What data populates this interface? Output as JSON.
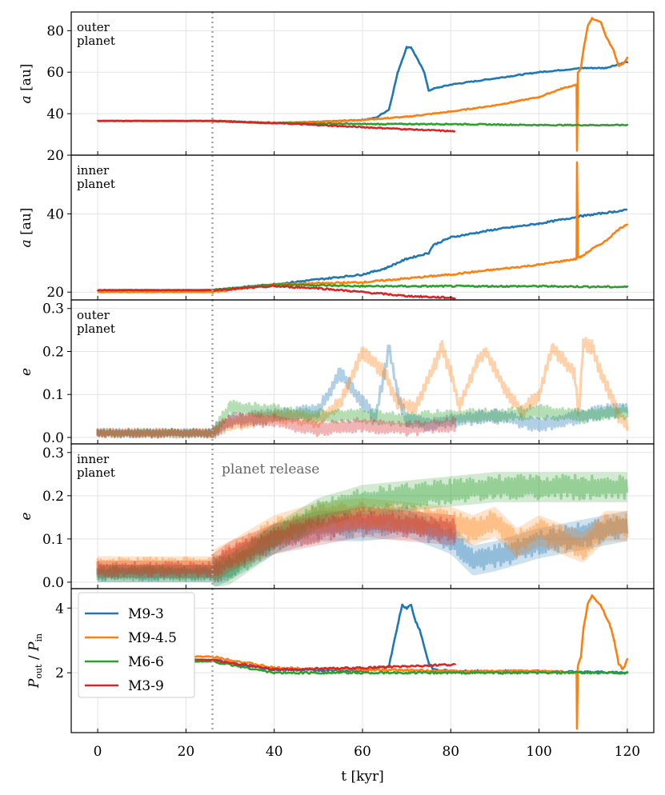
{
  "chart_data": {
    "type": "line",
    "title": "",
    "xlabel": "t [kyr]",
    "xlim": [
      -6,
      126
    ],
    "x_ticks": [
      "0",
      "20",
      "40",
      "60",
      "80",
      "100",
      "120"
    ],
    "x_tick_values": [
      0,
      20,
      40,
      60,
      80,
      100,
      120
    ],
    "release_time": 26,
    "release_label": "planet release",
    "colors": {
      "M9-3": "#1f77b4",
      "M9-4.5": "#ff7f0e",
      "M6-6": "#2ca02c",
      "M3-9": "#d62728"
    },
    "legend": {
      "location": "lower-left-of-bottom-panel",
      "entries": [
        "M9-3",
        "M9-4.5",
        "M6-6",
        "M3-9"
      ]
    },
    "panels": [
      {
        "id": "a_outer",
        "ylabel": "a [au]",
        "panel_label": [
          "outer",
          "planet"
        ],
        "ylim": [
          20,
          89
        ],
        "y_ticks": [
          "20",
          "40",
          "60",
          "80"
        ],
        "y_tick_values": [
          20,
          40,
          60,
          80
        ],
        "series": [
          {
            "name": "M9-3",
            "x": [
              0,
              26,
              40,
              50,
              60,
              63,
              66,
              68,
              70,
              71,
              72,
              74,
              75,
              76,
              80,
              90,
              100,
              110,
              115,
              120
            ],
            "y": [
              36.5,
              36.5,
              35.5,
              36,
              37,
              38,
              42,
              60,
              72,
              72,
              68,
              60,
              51,
              52,
              54,
              57,
              60,
              62,
              62,
              65
            ]
          },
          {
            "name": "M9-4.5",
            "x": [
              0,
              26,
              40,
              50,
              60,
              70,
              80,
              90,
              100,
              105,
              108.5,
              108.6,
              108.8,
              109.5,
              110,
              111,
              112,
              114,
              115,
              117,
              118,
              119,
              120
            ],
            "y": [
              36.5,
              36.5,
              35.5,
              36,
              37,
              38.5,
              41,
              44,
              48,
              52,
              54,
              22,
              60,
              62,
              70,
              82,
              86,
              84,
              78,
              70,
              63,
              64,
              67
            ]
          },
          {
            "name": "M6-6",
            "x": [
              0,
              26,
              40,
              60,
              80,
              100,
              120
            ],
            "y": [
              36.5,
              36.5,
              35.5,
              35,
              35,
              34.5,
              34.5
            ]
          },
          {
            "name": "M3-9",
            "x": [
              0,
              26,
              40,
              50,
              60,
              70,
              81
            ],
            "y": [
              36.5,
              36.5,
              35.5,
              34.5,
              33.5,
              32.5,
              31.5
            ]
          }
        ]
      },
      {
        "id": "a_inner",
        "ylabel": "a [au]",
        "panel_label": [
          "inner",
          "planet"
        ],
        "ylim": [
          18,
          55
        ],
        "y_ticks": [
          "20",
          "40"
        ],
        "y_tick_values": [
          20,
          40
        ],
        "series": [
          {
            "name": "M9-3",
            "x": [
              0,
              26,
              40,
              60,
              65,
              70,
              75,
              76,
              80,
              90,
              100,
              110,
              120
            ],
            "y": [
              20.5,
              20.5,
              22,
              24.5,
              26,
              28.5,
              30,
              32,
              34,
              36,
              37.5,
              39.5,
              41
            ]
          },
          {
            "name": "M9-4.5",
            "x": [
              0,
              26,
              40,
              60,
              80,
              100,
              108.5,
              108.6,
              108.8,
              109.5,
              112,
              115,
              118,
              120
            ],
            "y": [
              20,
              20,
              22,
              22.5,
              24.5,
              27,
              28.5,
              53,
              29,
              29,
              31,
              33,
              36,
              37.5
            ]
          },
          {
            "name": "M6-6",
            "x": [
              0,
              26,
              40,
              60,
              80,
              100,
              120
            ],
            "y": [
              20.5,
              20.5,
              22,
              21.5,
              21.5,
              21.5,
              21.3
            ]
          },
          {
            "name": "M3-9",
            "x": [
              0,
              26,
              40,
              50,
              60,
              70,
              81
            ],
            "y": [
              20.5,
              20.5,
              21.5,
              21,
              20,
              19,
              18.5
            ]
          }
        ]
      },
      {
        "id": "e_outer",
        "ylabel": "e",
        "panel_label": [
          "outer",
          "planet"
        ],
        "ylim": [
          -0.015,
          0.32
        ],
        "y_ticks": [
          "0.0",
          "0.1",
          "0.2",
          "0.3"
        ],
        "y_tick_values": [
          0,
          0.1,
          0.2,
          0.3
        ],
        "series": [
          {
            "name": "M9-3",
            "x": [
              0,
              26,
              30,
              40,
              50,
              55,
              60,
              63,
              65,
              66,
              68,
              70,
              75,
              80,
              90,
              100,
              110,
              120
            ],
            "y": [
              0.01,
              0.01,
              0.04,
              0.05,
              0.06,
              0.15,
              0.08,
              0.05,
              0.15,
              0.21,
              0.1,
              0.04,
              0.03,
              0.04,
              0.05,
              0.03,
              0.05,
              0.07
            ]
          },
          {
            "name": "M9-4.5",
            "x": [
              0,
              26,
              30,
              40,
              50,
              55,
              60,
              65,
              68,
              72,
              76,
              78,
              80,
              82,
              86,
              88,
              92,
              96,
              100,
              103,
              108,
              109,
              110,
              112,
              114,
              117,
              118,
              120
            ],
            "y": [
              0.01,
              0.01,
              0.03,
              0.05,
              0.04,
              0.08,
              0.2,
              0.15,
              0.08,
              0.07,
              0.16,
              0.21,
              0.15,
              0.07,
              0.18,
              0.2,
              0.12,
              0.06,
              0.1,
              0.21,
              0.15,
              0.05,
              0.22,
              0.21,
              0.15,
              0.08,
              0.05,
              0.03
            ]
          },
          {
            "name": "M6-6",
            "x": [
              0,
              26,
              30,
              40,
              50,
              60,
              70,
              80,
              90,
              100,
              110,
              120
            ],
            "y": [
              0.01,
              0.01,
              0.07,
              0.06,
              0.05,
              0.05,
              0.04,
              0.05,
              0.05,
              0.06,
              0.05,
              0.06
            ]
          },
          {
            "name": "M3-9",
            "x": [
              0,
              26,
              30,
              40,
              50,
              60,
              70,
              81
            ],
            "y": [
              0.01,
              0.01,
              0.04,
              0.04,
              0.02,
              0.03,
              0.02,
              0.03
            ]
          }
        ]
      },
      {
        "id": "e_inner",
        "ylabel": "e",
        "panel_label": [
          "inner",
          "planet"
        ],
        "ylim": [
          -0.015,
          0.32
        ],
        "y_ticks": [
          "0.0",
          "0.1",
          "0.2",
          "0.3"
        ],
        "y_tick_values": [
          0,
          0.1,
          0.2,
          0.3
        ],
        "series": [
          {
            "name": "M9-3",
            "x": [
              0,
              26,
              30,
              40,
              50,
              60,
              70,
              75,
              80,
              85,
              90,
              100,
              110,
              120
            ],
            "y": [
              0.02,
              0.02,
              0.04,
              0.1,
              0.13,
              0.13,
              0.14,
              0.12,
              0.1,
              0.05,
              0.06,
              0.09,
              0.11,
              0.13
            ]
          },
          {
            "name": "M9-4.5",
            "x": [
              0,
              26,
              30,
              40,
              50,
              60,
              70,
              80,
              85,
              90,
              95,
              100,
              105,
              110,
              115,
              120
            ],
            "y": [
              0.04,
              0.04,
              0.06,
              0.12,
              0.15,
              0.16,
              0.15,
              0.14,
              0.12,
              0.14,
              0.09,
              0.12,
              0.1,
              0.08,
              0.13,
              0.13
            ]
          },
          {
            "name": "M6-6",
            "x": [
              0,
              26,
              30,
              40,
              50,
              60,
              70,
              80,
              90,
              100,
              110,
              120
            ],
            "y": [
              0.02,
              0.02,
              0.03,
              0.1,
              0.16,
              0.19,
              0.2,
              0.21,
              0.22,
              0.22,
              0.22,
              0.22
            ]
          },
          {
            "name": "M3-9",
            "x": [
              0,
              26,
              30,
              40,
              50,
              60,
              70,
              81
            ],
            "y": [
              0.03,
              0.03,
              0.06,
              0.1,
              0.12,
              0.14,
              0.13,
              0.12
            ]
          }
        ]
      },
      {
        "id": "period_ratio",
        "ylabel": "P_out / P_in",
        "ylabel_parts": {
          "p1": "P",
          "s1": "out",
          "sep": " / ",
          "p2": "P",
          "s2": "in"
        },
        "ylim": [
          0.15,
          4.6
        ],
        "y_ticks": [
          "2",
          "4"
        ],
        "y_tick_values": [
          2,
          4
        ],
        "series": [
          {
            "name": "M9-3",
            "x": [
              0,
              26,
              40,
              60,
              66,
              68,
              69,
              70,
              71,
              72,
              73,
              75,
              76,
              80,
              100,
              120
            ],
            "y": [
              2.4,
              2.4,
              2.1,
              2.05,
              2.2,
              3.5,
              4.1,
              4.0,
              4.1,
              3.6,
              3.3,
              2.3,
              2.1,
              2.05,
              2.05,
              2.0
            ]
          },
          {
            "name": "M9-4.5",
            "x": [
              0,
              26,
              40,
              60,
              80,
              100,
              108.5,
              108.6,
              108.8,
              109.5,
              110,
              111,
              112,
              113,
              114,
              116,
              117,
              118,
              119,
              120
            ],
            "y": [
              2.5,
              2.5,
              2.15,
              2.1,
              2.05,
              2.05,
              2.0,
              0.3,
              2.2,
              2.5,
              3.3,
              4.1,
              4.4,
              4.2,
              4.1,
              3.5,
              3.0,
              2.3,
              2.1,
              2.4
            ]
          },
          {
            "name": "M6-6",
            "x": [
              0,
              26,
              40,
              60,
              80,
              100,
              120
            ],
            "y": [
              2.35,
              2.35,
              2.0,
              2.0,
              2.0,
              2.0,
              2.0
            ]
          },
          {
            "name": "M3-9",
            "x": [
              0,
              26,
              40,
              60,
              70,
              81
            ],
            "y": [
              2.4,
              2.4,
              2.1,
              2.15,
              2.2,
              2.25
            ]
          }
        ]
      }
    ]
  }
}
